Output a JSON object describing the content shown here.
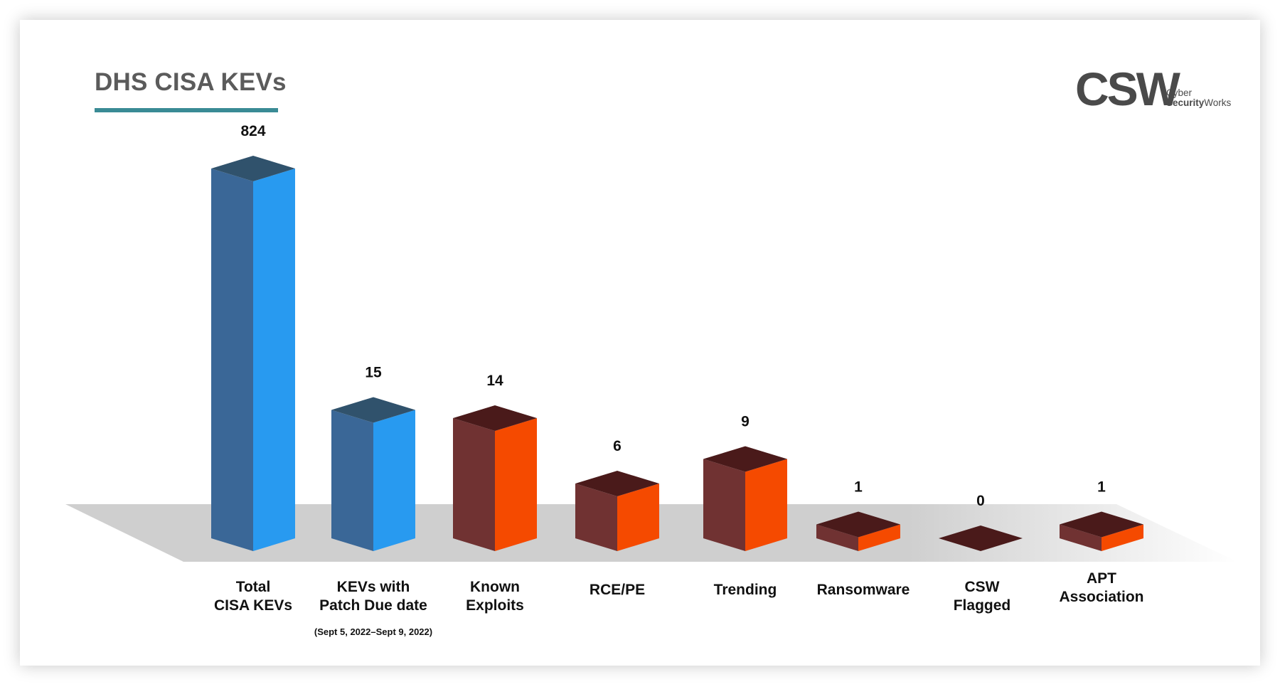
{
  "title": "DHS CISA KEVs",
  "logo": {
    "mark": "CSW",
    "line1": "Cyber",
    "line2_bold": "Security",
    "line2_rest": "Works"
  },
  "chart_data": {
    "type": "bar",
    "title": "DHS CISA KEVs",
    "categories": [
      [
        "Total",
        "CISA KEVs"
      ],
      [
        "KEVs with",
        "Patch Due date"
      ],
      [
        "Known",
        "Exploits"
      ],
      [
        "RCE/PE"
      ],
      [
        "Trending"
      ],
      [
        "Ransomware"
      ],
      [
        "CSW",
        "Flagged"
      ],
      [
        "APT",
        "Association"
      ]
    ],
    "values": [
      824,
      15,
      14,
      6,
      9,
      1,
      0,
      1
    ],
    "value_labels": [
      "824",
      "15",
      "14",
      "6",
      "9",
      "1",
      "0",
      "1"
    ],
    "note": "(Sept 5, 2022–Sept 9, 2022)",
    "colors": {
      "blue_front": "#3a6797",
      "blue_side": "#289af0",
      "blue_top": "#30526c",
      "orange_front": "#703232",
      "orange_side": "#f54a00",
      "orange_top": "#4a1a1a",
      "floor": "#cfcfcf"
    },
    "series_colors": [
      "blue",
      "blue",
      "orange",
      "orange",
      "orange",
      "orange",
      "orange",
      "orange"
    ],
    "note_category_index": 1,
    "value_axis": "not shown",
    "grid": false
  }
}
